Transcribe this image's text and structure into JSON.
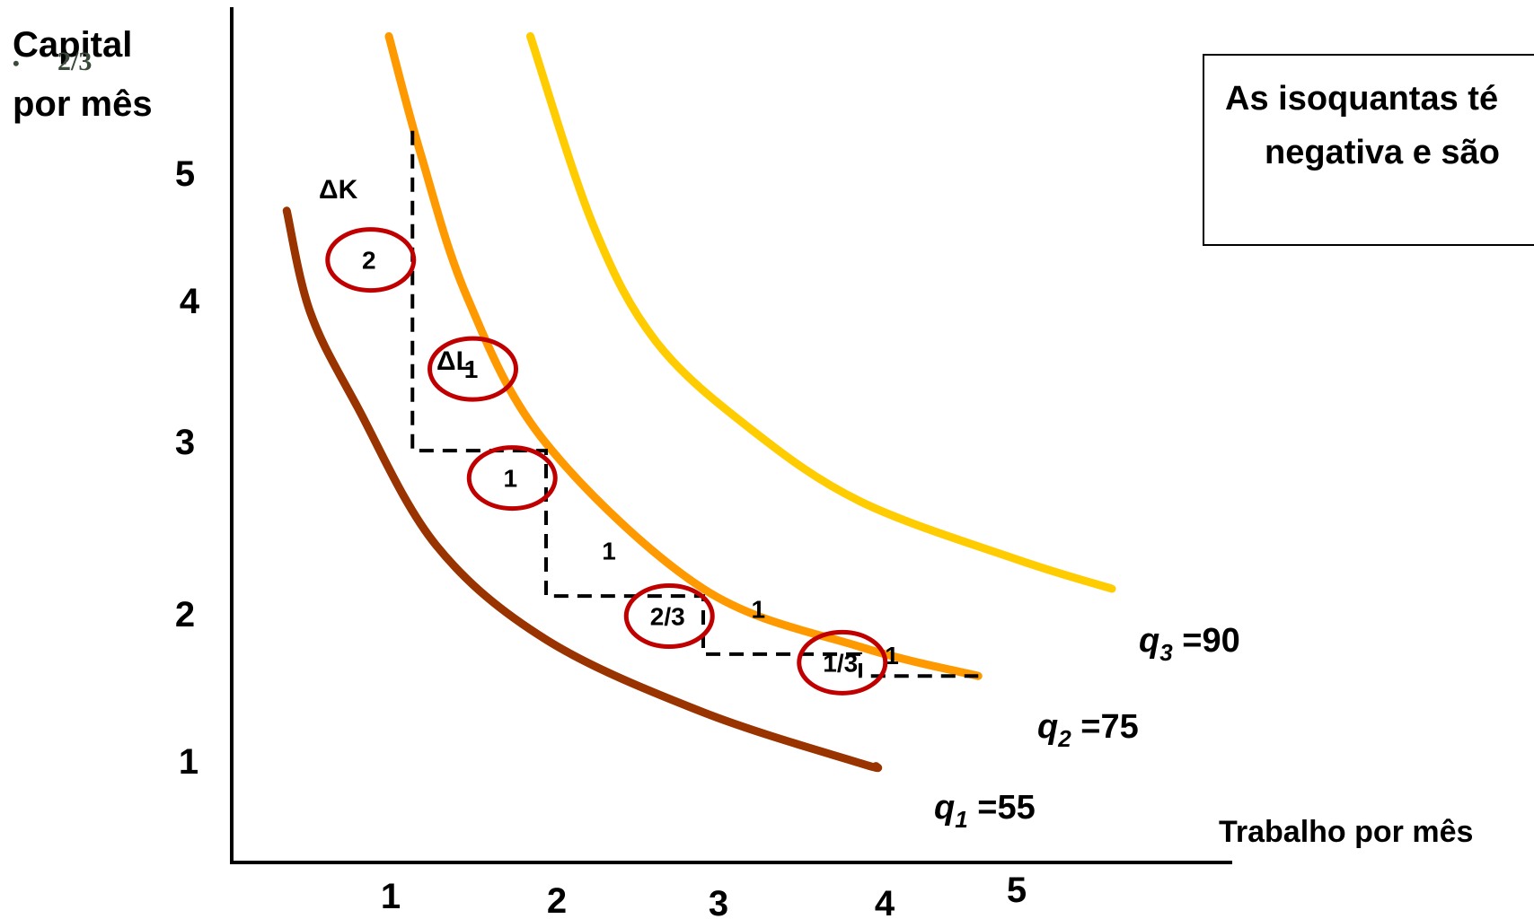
{
  "y_axis_label": {
    "line1": "Capital",
    "line2": "por mês"
  },
  "x_axis_label": "Trabalho por mês",
  "overlay_bullet": "•",
  "overlay_text": "2/3",
  "info_box": {
    "line1": "As isoquantas té",
    "line2": "negativa e são"
  },
  "delta_k": "ΔK",
  "delta_l": "ΔL",
  "chart_data": {
    "type": "line",
    "x_ticks": [
      "1",
      "2",
      "3",
      "4",
      "5"
    ],
    "y_ticks": [
      "1",
      "2",
      "3",
      "4",
      "5"
    ],
    "series": [
      {
        "name": "q1 =55",
        "name_var": "q",
        "name_sub": "1",
        "name_val": "=55",
        "color": "#993300",
        "points": [
          [
            0.35,
            4.6
          ],
          [
            0.5,
            3.9
          ],
          [
            0.8,
            3.25
          ],
          [
            1.3,
            2.3
          ],
          [
            2,
            1.65
          ],
          [
            3,
            1.15
          ],
          [
            4,
            0.8
          ],
          [
            4.1,
            0.78
          ]
        ]
      },
      {
        "name": "q2 =75",
        "name_var": "q",
        "name_sub": "2",
        "name_val": "=75",
        "color": "#ff9900",
        "points": [
          [
            1,
            5.8
          ],
          [
            1.2,
            5
          ],
          [
            1.5,
            4
          ],
          [
            2,
            3
          ],
          [
            3,
            2
          ],
          [
            4,
            1.6
          ],
          [
            4.75,
            1.4
          ]
        ]
      },
      {
        "name": "q3 =90",
        "name_var": "q",
        "name_sub": "3",
        "name_val": "=90",
        "color": "#ffcc00",
        "points": [
          [
            1.9,
            5.8
          ],
          [
            2.3,
            4.5
          ],
          [
            2.7,
            3.7
          ],
          [
            3.3,
            3.1
          ],
          [
            4,
            2.6
          ],
          [
            5,
            2.2
          ],
          [
            5.6,
            2.0
          ]
        ]
      }
    ],
    "steps": {
      "color": "#000000",
      "points": [
        [
          1.15,
          5.15
        ],
        [
          1.15,
          2.95
        ],
        [
          2,
          2.95
        ],
        [
          2,
          1.95
        ],
        [
          3,
          1.95
        ],
        [
          3,
          1.55
        ],
        [
          4,
          1.55
        ],
        [
          4,
          1.4
        ],
        [
          4.75,
          1.4
        ]
      ]
    },
    "step_labels": [
      {
        "text": "1",
        "x": 2.4,
        "y": 2.2
      },
      {
        "text": "1",
        "x": 3.35,
        "y": 1.8
      },
      {
        "text": "1",
        "x": 4.2,
        "y": 1.48
      }
    ],
    "mrts_circles": [
      {
        "text": "2",
        "x": 0.85,
        "y": 4.2
      },
      {
        "text": "1",
        "x": 1.5,
        "y": 3.45
      },
      {
        "text": "1",
        "x": 1.75,
        "y": 2.7
      },
      {
        "text": "2/3",
        "x": 2.75,
        "y": 1.75
      },
      {
        "text": "1/3",
        "x": 3.85,
        "y": 1.43
      }
    ],
    "circle_color": "#c00000"
  }
}
